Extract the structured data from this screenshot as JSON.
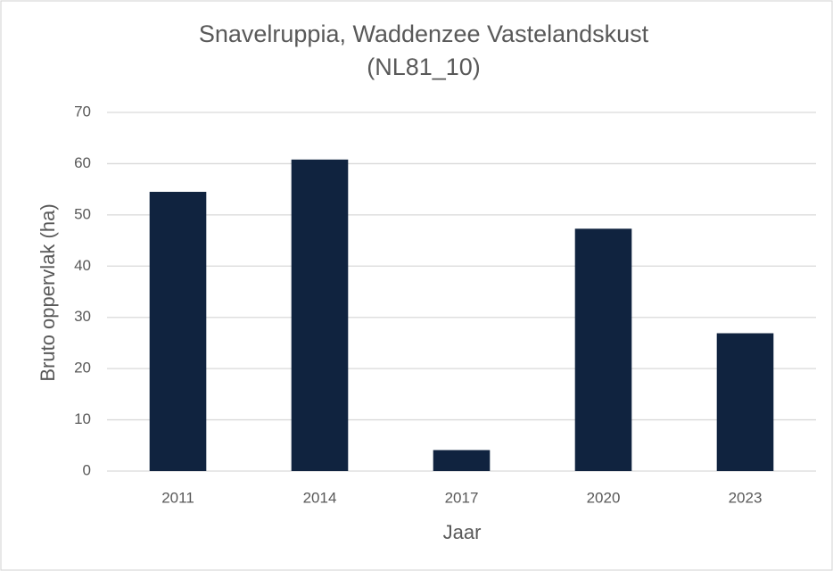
{
  "chart_data": {
    "type": "bar",
    "title": [
      "Snavelruppia, Waddenzee Vastelandskust",
      "(NL81_10)"
    ],
    "x_label": "Jaar",
    "y_label": "Bruto oppervlak (ha)",
    "categories": [
      "2011",
      "2014",
      "2017",
      "2020",
      "2023"
    ],
    "values": [
      54.5,
      60.8,
      4.1,
      47.3,
      26.9
    ],
    "color": "#10233f",
    "ylim": [
      0,
      70
    ],
    "yticks": [
      0,
      10,
      20,
      30,
      40,
      50,
      60,
      70
    ],
    "grid": true
  }
}
